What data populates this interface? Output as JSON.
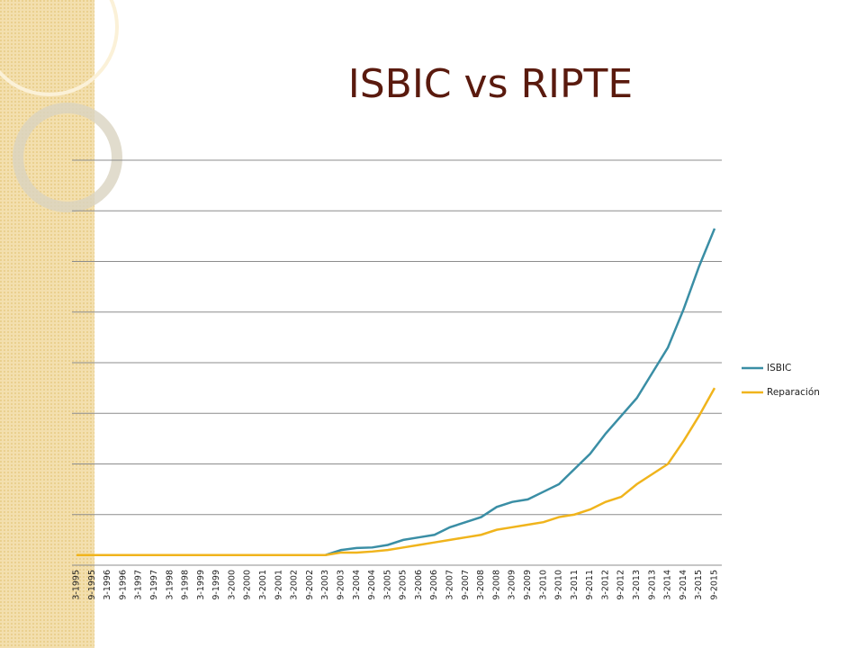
{
  "chart_data": {
    "type": "line",
    "title": "ISBIC vs RIPTE",
    "categories": [
      "3-1995",
      "9-1995",
      "3-1996",
      "9-1996",
      "3-1997",
      "9-1997",
      "3-1998",
      "9-1998",
      "3-1999",
      "9-1999",
      "3-2000",
      "9-2000",
      "3-2001",
      "9-2001",
      "3-2002",
      "9-2002",
      "3-2003",
      "9-2003",
      "3-2004",
      "9-2004",
      "3-2005",
      "9-2005",
      "3-2006",
      "9-2006",
      "3-2007",
      "9-2007",
      "3-2008",
      "9-2008",
      "3-2009",
      "9-2009",
      "3-2010",
      "9-2010",
      "3-2011",
      "9-2011",
      "3-2012",
      "9-2012",
      "3-2013",
      "9-2013",
      "3-2014",
      "9-2014",
      "3-2015",
      "9-2015"
    ],
    "series": [
      {
        "name": "ISBIC",
        "color": "#3a8ea5",
        "values": [
          0.2,
          0.2,
          0.2,
          0.2,
          0.2,
          0.2,
          0.2,
          0.2,
          0.2,
          0.2,
          0.2,
          0.2,
          0.2,
          0.2,
          0.2,
          0.2,
          0.2,
          0.3,
          0.34,
          0.35,
          0.4,
          0.5,
          0.55,
          0.6,
          0.75,
          0.85,
          0.95,
          1.15,
          1.25,
          1.3,
          1.45,
          1.6,
          1.9,
          2.2,
          2.6,
          2.95,
          3.3,
          3.8,
          4.3,
          5.05,
          5.9,
          6.65
        ]
      },
      {
        "name": "Reparación",
        "color": "#f0b41c",
        "values": [
          0.2,
          0.2,
          0.2,
          0.2,
          0.2,
          0.2,
          0.2,
          0.2,
          0.2,
          0.2,
          0.2,
          0.2,
          0.2,
          0.2,
          0.2,
          0.2,
          0.2,
          0.25,
          0.25,
          0.27,
          0.3,
          0.35,
          0.4,
          0.45,
          0.5,
          0.55,
          0.6,
          0.7,
          0.75,
          0.8,
          0.85,
          0.95,
          1.0,
          1.1,
          1.25,
          1.35,
          1.6,
          1.8,
          2.0,
          2.45,
          2.95,
          3.5
        ]
      }
    ],
    "ylim": [
      0,
      8
    ],
    "yticks": [
      0,
      1,
      2,
      3,
      4,
      5,
      6,
      7,
      8
    ],
    "ytick_labels": false,
    "grid": true,
    "legend": "right"
  }
}
